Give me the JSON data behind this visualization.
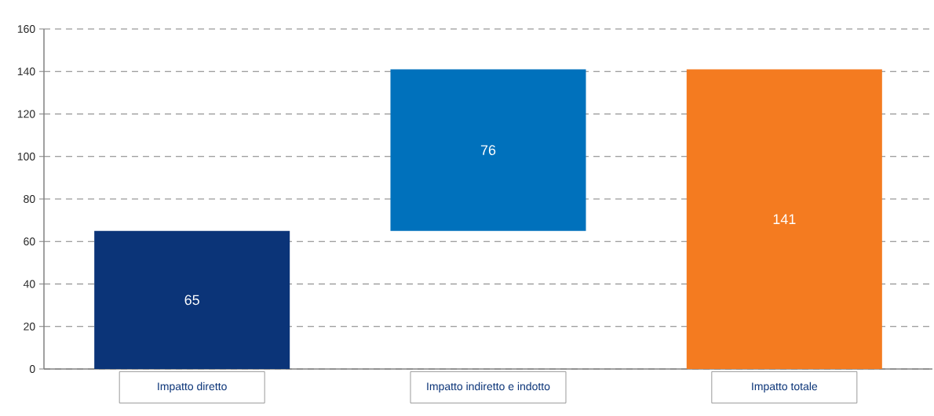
{
  "chart_data": {
    "type": "bar",
    "categories": [
      "Impatto diretto",
      "Impatto indiretto e indotto",
      "Impatto totale"
    ],
    "values": [
      65,
      76,
      141
    ],
    "base": [
      0,
      65,
      0
    ],
    "colors": [
      "#0b3478",
      "#0071bc",
      "#f47b20"
    ],
    "data_labels": true,
    "ylim": [
      0,
      160
    ],
    "yticks": [
      0,
      20,
      40,
      60,
      80,
      100,
      120,
      140,
      160
    ],
    "grid": "y"
  }
}
